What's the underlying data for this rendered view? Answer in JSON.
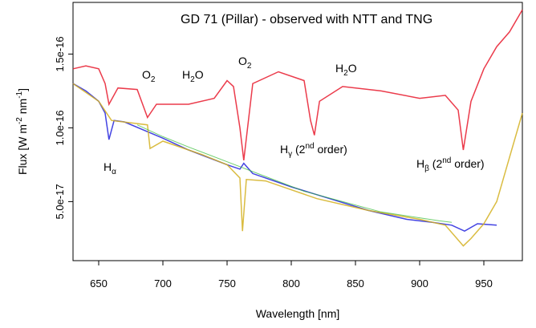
{
  "chart_data": {
    "type": "line",
    "title": "GD 71 (Pillar) - observed with NTT and TNG",
    "xlabel": "Wavelength [nm]",
    "ylabel": "Flux [W m",
    "ylabel_sup1": "-2",
    "ylabel_mid": " nm",
    "ylabel_sup2": "-1",
    "ylabel_end": "]",
    "xlim": [
      630,
      980
    ],
    "ylim": [
      1e-17,
      1.85e-16
    ],
    "x_ticks": [
      650,
      700,
      750,
      800,
      850,
      900,
      950
    ],
    "x_tick_labels": [
      "650",
      "700",
      "750",
      "800",
      "850",
      "900",
      "950"
    ],
    "y_ticks": [
      5e-17,
      1e-16,
      1.5e-16
    ],
    "y_tick_labels": [
      "5.0e-17",
      "1.0e-16",
      "1.5e-16"
    ],
    "annotations": {
      "o2_a": {
        "base": "O",
        "sub": "2"
      },
      "h2o_a": {
        "base": "H",
        "sub": "2",
        "rest": "O"
      },
      "o2_b": {
        "base": "O",
        "sub": "2"
      },
      "h2o_b": {
        "base": "H",
        "sub": "2",
        "rest": "O"
      },
      "h_alpha": {
        "base": "H",
        "sub": "α"
      },
      "h_gamma": {
        "base": "H",
        "sub": "γ",
        "pre": " (2",
        "sup": "nd",
        "post": " order)"
      },
      "h_beta": {
        "base": "H",
        "sub": "β",
        "pre": " (2",
        "sup": "nd",
        "post": " order)"
      }
    },
    "series": [
      {
        "color": "#e8192c",
        "role": "red-arm",
        "x": [
          630,
          640,
          650,
          655,
          658,
          665,
          680,
          688,
          695,
          720,
          740,
          750,
          755,
          760,
          763,
          770,
          790,
          810,
          815,
          818,
          822,
          840,
          870,
          900,
          920,
          930,
          934,
          940,
          950,
          960,
          970,
          980
        ],
        "y": [
          1.4e-16,
          1.42e-16,
          1.4e-16,
          1.3e-16,
          1.16e-16,
          1.27e-16,
          1.26e-16,
          1.07e-16,
          1.16e-16,
          1.16e-16,
          1.2e-16,
          1.32e-16,
          1.28e-16,
          1e-16,
          7.8e-17,
          1.3e-16,
          1.38e-16,
          1.32e-16,
          1.05e-16,
          9.5e-17,
          1.18e-16,
          1.28e-16,
          1.25e-16,
          1.2e-16,
          1.22e-16,
          1.12e-16,
          8.5e-17,
          1.18e-16,
          1.4e-16,
          1.55e-16,
          1.65e-16,
          1.8e-16
        ]
      },
      {
        "color": "#2222dd",
        "role": "blue-arm",
        "x": [
          630,
          640,
          650,
          655,
          658,
          662,
          670,
          700,
          720,
          750,
          760,
          763,
          770,
          800,
          830,
          860,
          890,
          910,
          925,
          935,
          945,
          960
        ],
        "y": [
          1.3e-16,
          1.25e-16,
          1.18e-16,
          1.1e-16,
          9.2e-17,
          1.05e-16,
          1.04e-16,
          9.3e-17,
          8.5e-17,
          7.5e-17,
          7.2e-17,
          7.6e-17,
          6.9e-17,
          6e-17,
          5.2e-17,
          4.4e-17,
          3.8e-17,
          3.6e-17,
          3.4e-17,
          3e-17,
          3.5e-17,
          3.4e-17
        ]
      },
      {
        "color": "#d4b020",
        "role": "yellow-arm",
        "x": [
          630,
          650,
          660,
          688,
          690,
          700,
          720,
          730,
          750,
          760,
          762,
          765,
          780,
          820,
          860,
          900,
          920,
          930,
          934,
          940,
          950,
          960,
          970,
          980
        ],
        "y": [
          1.3e-16,
          1.18e-16,
          1.05e-16,
          1.02e-16,
          8.6e-17,
          9.1e-17,
          8.5e-17,
          8.2e-17,
          7.5e-17,
          6.6e-17,
          3e-17,
          6.5e-17,
          6.4e-17,
          5.2e-17,
          4.4e-17,
          3.8e-17,
          3.4e-17,
          2.4e-17,
          2e-17,
          2.5e-17,
          3.5e-17,
          5e-17,
          8e-17,
          1.1e-16
        ]
      },
      {
        "color": "#33bb33",
        "role": "green-arm",
        "x": [
          680,
          700,
          720,
          750,
          780,
          810,
          840,
          870,
          900,
          915,
          925
        ],
        "y": [
          1.02e-16,
          9.4e-17,
          8.7e-17,
          7.7e-17,
          6.7e-17,
          5.7e-17,
          5e-17,
          4.3e-17,
          3.9e-17,
          3.7e-17,
          3.6e-17
        ]
      }
    ],
    "grid": false,
    "legend": "none"
  }
}
